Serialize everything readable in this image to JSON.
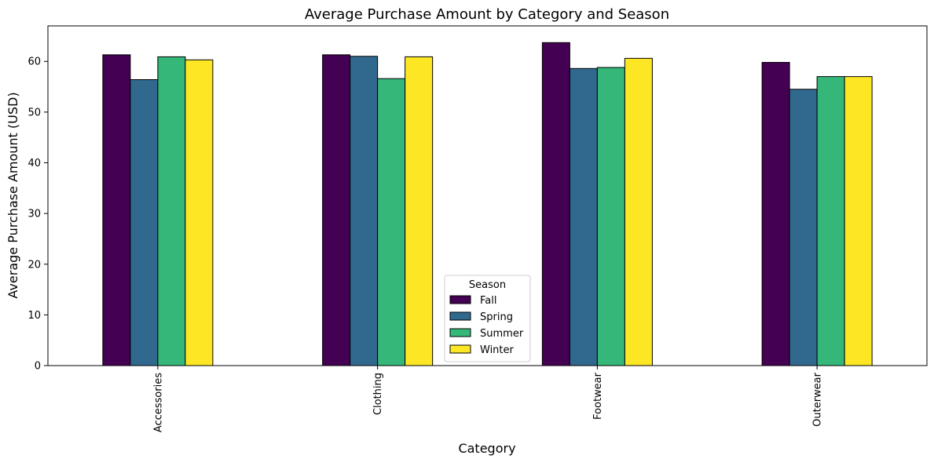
{
  "chart_data": {
    "type": "bar",
    "title": "Average Purchase Amount by Category and Season",
    "xlabel": "Category",
    "ylabel": "Average Purchase Amount (USD)",
    "categories": [
      "Accessories",
      "Clothing",
      "Footwear",
      "Outerwear"
    ],
    "series": [
      {
        "name": "Fall",
        "color": "#440154",
        "values": [
          61.3,
          61.3,
          63.7,
          59.8
        ]
      },
      {
        "name": "Spring",
        "color": "#31688e",
        "values": [
          56.4,
          61.0,
          58.6,
          54.5
        ]
      },
      {
        "name": "Summer",
        "color": "#35b779",
        "values": [
          60.9,
          56.6,
          58.8,
          57.0
        ]
      },
      {
        "name": "Winter",
        "color": "#fde725",
        "values": [
          60.3,
          60.9,
          60.6,
          57.0
        ]
      }
    ],
    "ylim": [
      0,
      67
    ],
    "yticks": [
      0,
      10,
      20,
      30,
      40,
      50,
      60
    ],
    "grid": false,
    "legend": {
      "title": "Season",
      "position": "lower center"
    },
    "bar_edge_color": "#000000"
  }
}
